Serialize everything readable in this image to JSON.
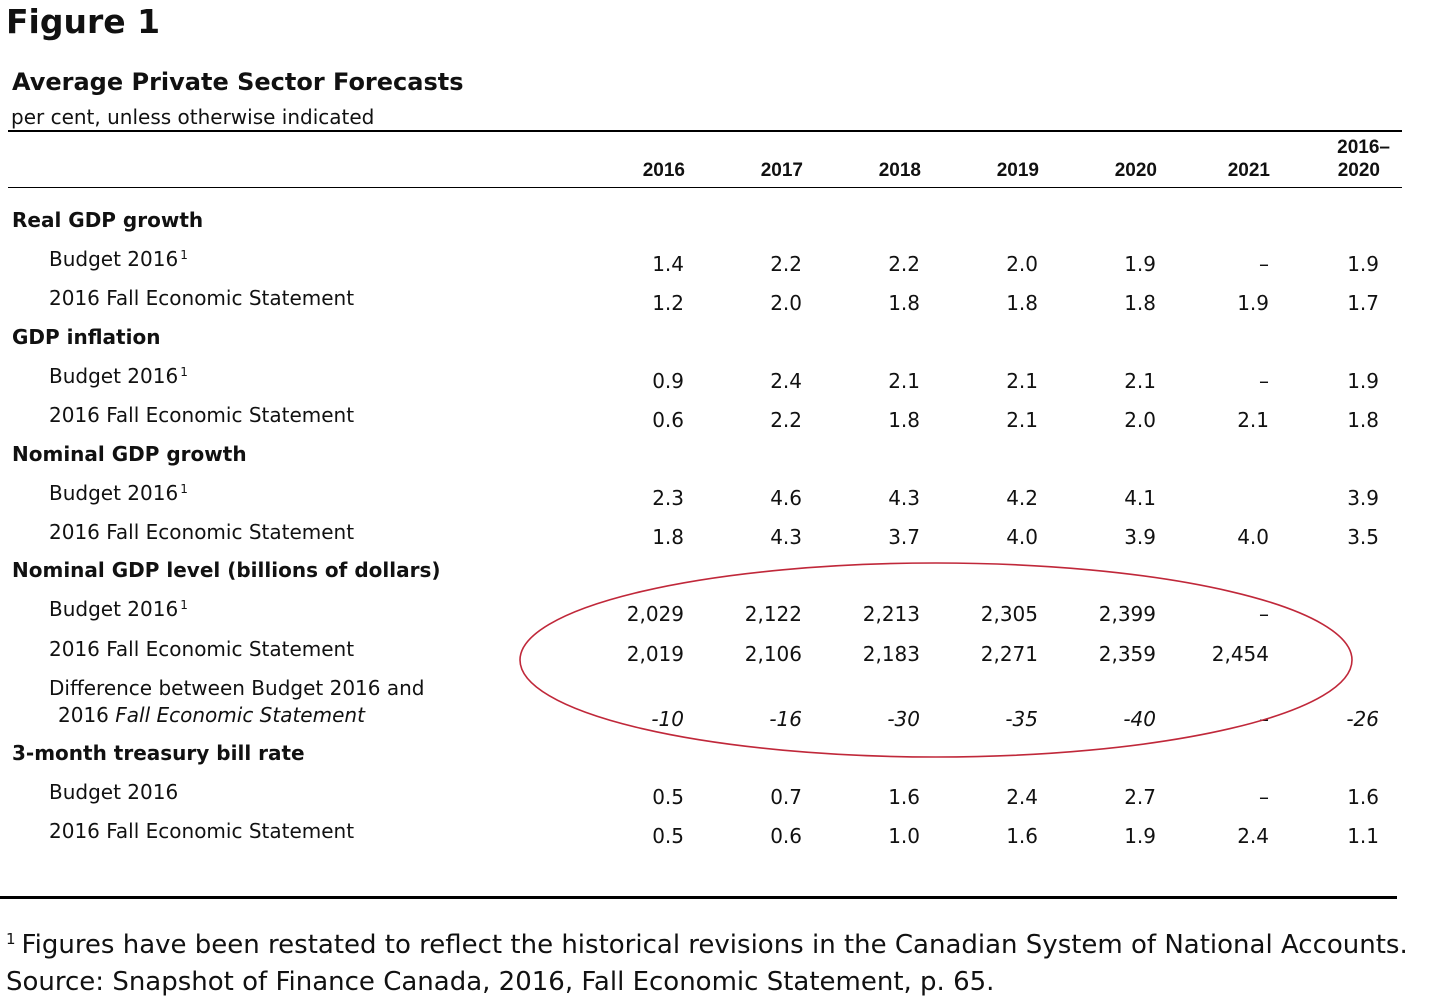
{
  "figure_label": "Figure 1",
  "table": {
    "title": "Average Private Sector Forecasts",
    "subtitle": "per cent, unless otherwise indicated",
    "columns": [
      "2016",
      "2017",
      "2018",
      "2019",
      "2020",
      "2021"
    ],
    "last_column": {
      "line1": "2016–",
      "line2": "2020"
    },
    "sections": [
      {
        "label": "Real GDP growth",
        "rows": [
          {
            "label": "Budget 2016",
            "footnote": "1",
            "values": [
              "1.4",
              "2.2",
              "2.2",
              "2.0",
              "1.9",
              "–",
              "1.9"
            ]
          },
          {
            "label": "2016 Fall Economic Statement",
            "values": [
              "1.2",
              "2.0",
              "1.8",
              "1.8",
              "1.8",
              "1.9",
              "1.7"
            ]
          }
        ]
      },
      {
        "label": "GDP inflation",
        "rows": [
          {
            "label": "Budget 2016",
            "footnote": "1",
            "values": [
              "0.9",
              "2.4",
              "2.1",
              "2.1",
              "2.1",
              "–",
              "1.9"
            ]
          },
          {
            "label": "2016 Fall Economic Statement",
            "values": [
              "0.6",
              "2.2",
              "1.8",
              "2.1",
              "2.0",
              "2.1",
              "1.8"
            ]
          }
        ]
      },
      {
        "label": "Nominal GDP growth",
        "rows": [
          {
            "label": "Budget 2016",
            "footnote": "1",
            "values": [
              "2.3",
              "4.6",
              "4.3",
              "4.2",
              "4.1",
              "",
              "3.9"
            ]
          },
          {
            "label": "2016 Fall Economic Statement",
            "values": [
              "1.8",
              "4.3",
              "3.7",
              "4.0",
              "3.9",
              "4.0",
              "3.5"
            ]
          }
        ]
      },
      {
        "label": "Nominal GDP level (billions of dollars)",
        "rows": [
          {
            "label": "Budget 2016",
            "footnote": "1",
            "values": [
              "2,029",
              "2,122",
              "2,213",
              "2,305",
              "2,399",
              "–",
              ""
            ]
          },
          {
            "label": "2016 Fall Economic Statement",
            "values": [
              "2,019",
              "2,106",
              "2,183",
              "2,271",
              "2,359",
              "2,454",
              ""
            ]
          },
          {
            "label_line1": "Difference between Budget 2016 and",
            "label_line2_plain": "2016 ",
            "label_line2_italic": "Fall Economic Statement",
            "values": [
              "-10",
              "-16",
              "-30",
              "-35",
              "-40",
              "–",
              "-26"
            ]
          }
        ]
      },
      {
        "label": "3-month treasury bill rate",
        "rows": [
          {
            "label": "Budget 2016",
            "values": [
              "0.5",
              "0.7",
              "1.6",
              "2.4",
              "2.7",
              "–",
              "1.6"
            ]
          },
          {
            "label": "2016 Fall Economic Statement",
            "values": [
              "0.5",
              "0.6",
              "1.0",
              "1.6",
              "1.9",
              "2.4",
              "1.1"
            ]
          }
        ]
      }
    ]
  },
  "footnote": {
    "marker": "1",
    "text": "Figures have been restated to reflect the historical revisions in the Canadian System of National Accounts.",
    "source": "Source: Snapshot of Finance Canada, 2016, Fall Economic Statement, p. 65."
  },
  "colors": {
    "annotation_ellipse": "#c0283a"
  }
}
